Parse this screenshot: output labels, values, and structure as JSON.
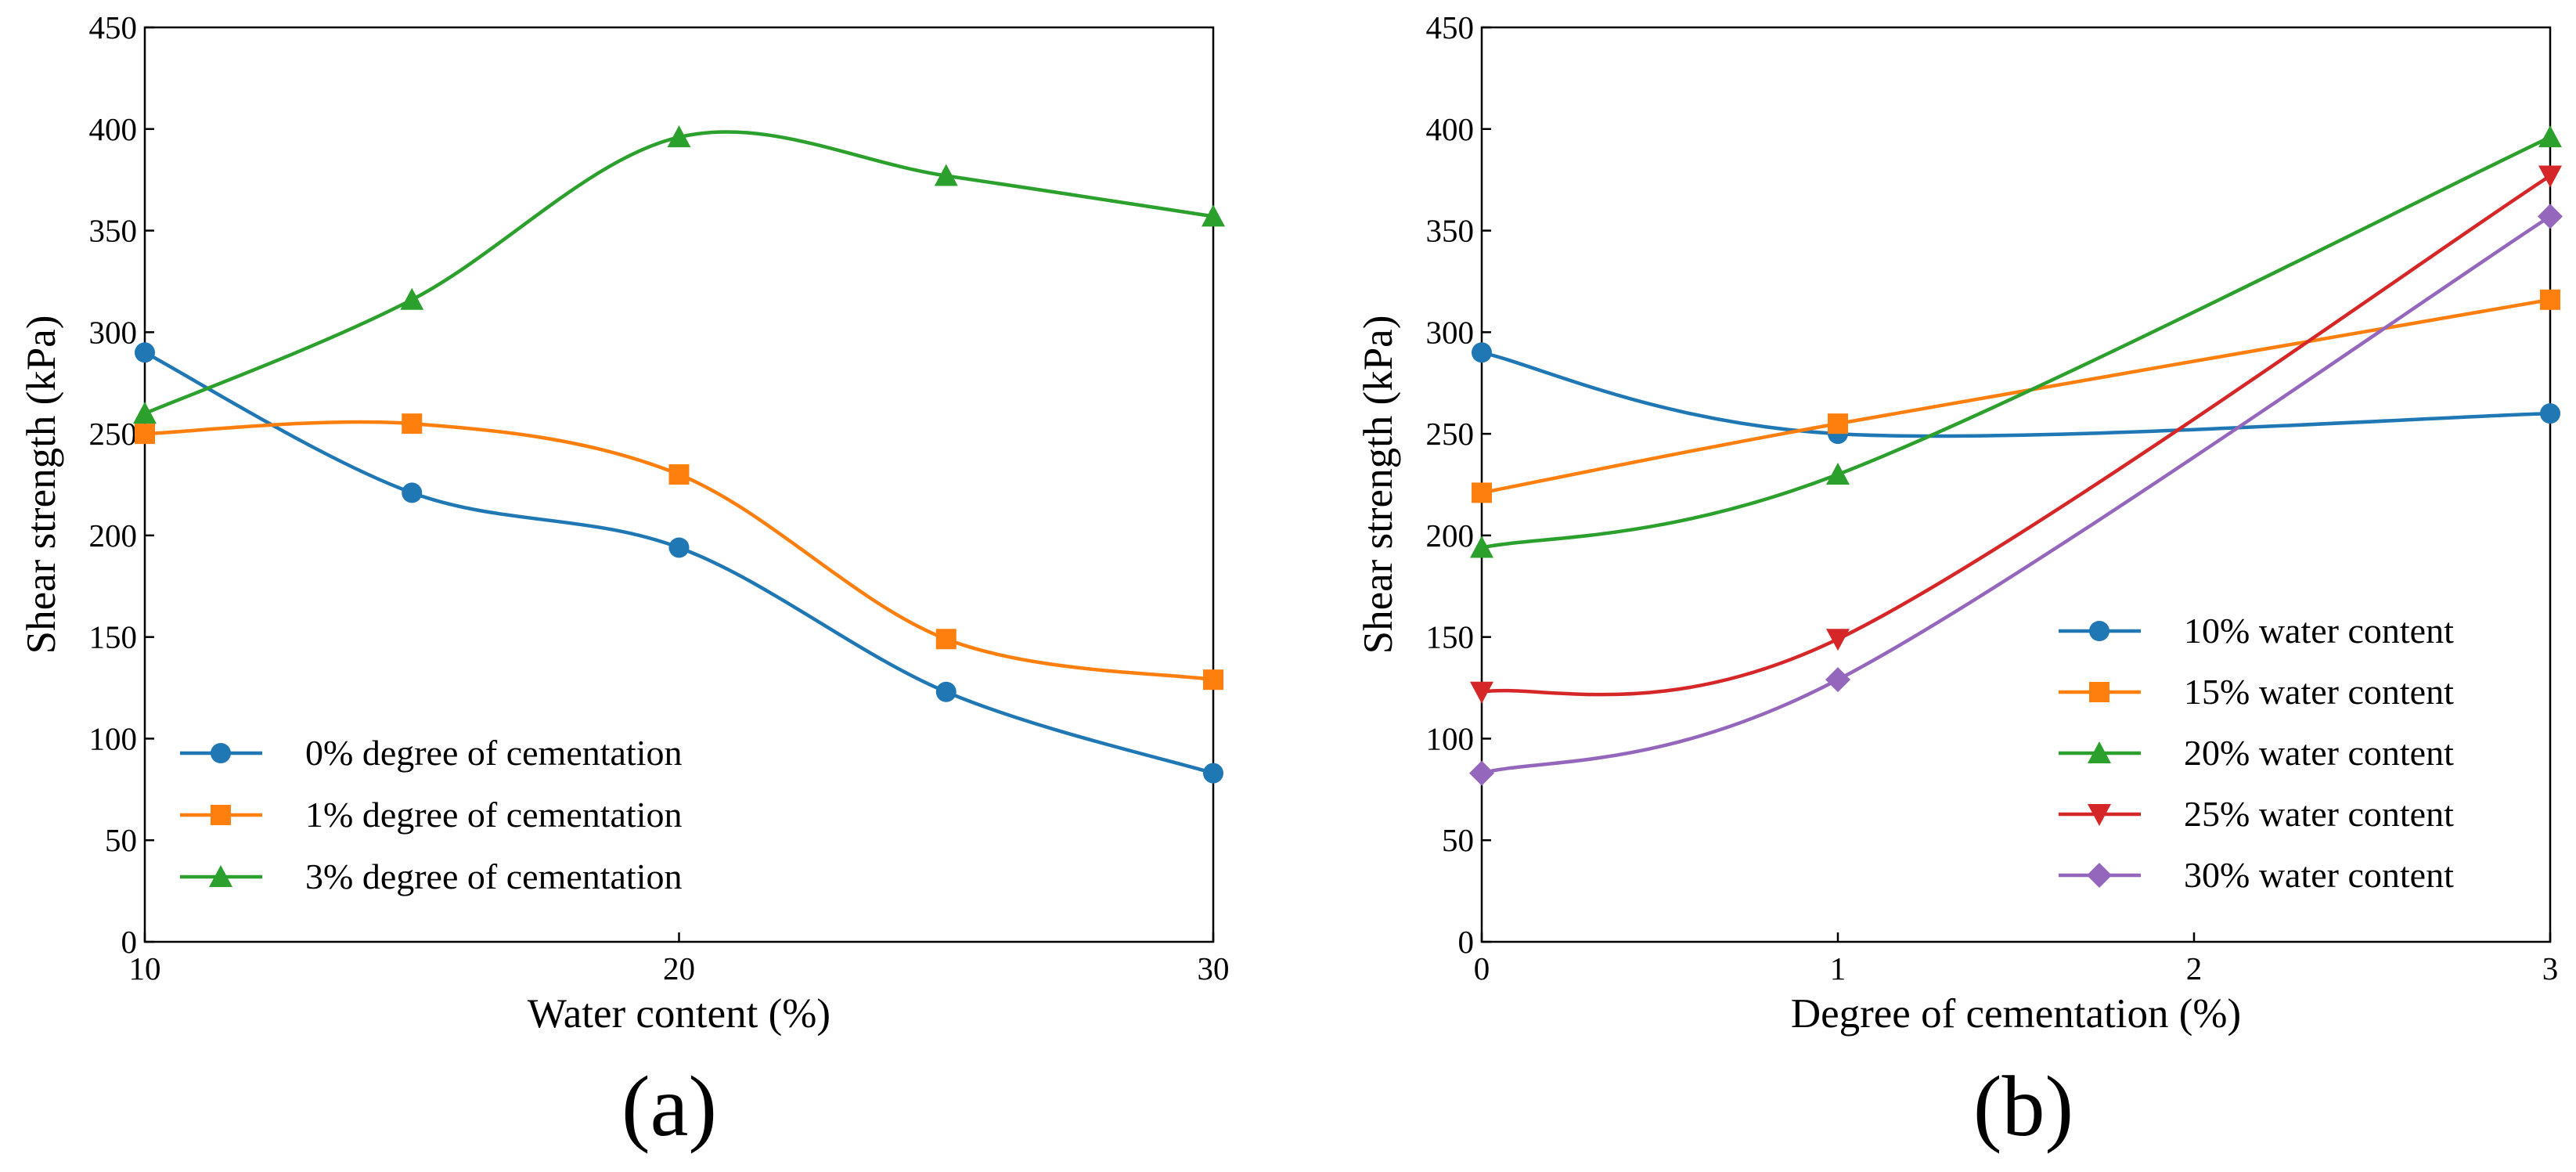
{
  "chart_data": [
    {
      "type": "line",
      "panel_label": "(a)",
      "xlabel": "Water content (%)",
      "ylabel": "Shear strength (kPa)",
      "xlim": [
        10,
        30
      ],
      "ylim": [
        0,
        450
      ],
      "xticks": [
        10,
        20,
        30
      ],
      "yticks": [
        0,
        50,
        100,
        150,
        200,
        250,
        300,
        350,
        400,
        450
      ],
      "grid": false,
      "legend_position": "lower-left",
      "series": [
        {
          "name": "0% degree of cementation",
          "color": "#1f77b4",
          "marker": "circle",
          "x": [
            10,
            15,
            20,
            25,
            30
          ],
          "y": [
            290,
            221,
            194,
            123,
            83
          ]
        },
        {
          "name": "1% degree of cementation",
          "color": "#ff7f0e",
          "marker": "square",
          "x": [
            10,
            15,
            20,
            25,
            30
          ],
          "y": [
            250,
            255,
            230,
            149,
            129
          ]
        },
        {
          "name": "3% degree of cementation",
          "color": "#2ca02c",
          "marker": "triangle-up",
          "x": [
            10,
            15,
            20,
            25,
            30
          ],
          "y": [
            260,
            316,
            396,
            377,
            357
          ]
        }
      ]
    },
    {
      "type": "line",
      "panel_label": "(b)",
      "xlabel": "Degree of cementation (%)",
      "ylabel": "Shear strength (kPa)",
      "xlim": [
        0,
        3
      ],
      "ylim": [
        0,
        450
      ],
      "xticks": [
        0,
        1,
        2,
        3
      ],
      "yticks": [
        0,
        50,
        100,
        150,
        200,
        250,
        300,
        350,
        400,
        450
      ],
      "grid": false,
      "legend_position": "lower-right",
      "series": [
        {
          "name": "10% water content",
          "color": "#1f77b4",
          "marker": "circle",
          "x": [
            0,
            1,
            3
          ],
          "y": [
            290,
            250,
            260
          ]
        },
        {
          "name": "15% water content",
          "color": "#ff7f0e",
          "marker": "square",
          "x": [
            0,
            1,
            3
          ],
          "y": [
            221,
            255,
            316
          ]
        },
        {
          "name": "20% water content",
          "color": "#2ca02c",
          "marker": "triangle-up",
          "x": [
            0,
            1,
            3
          ],
          "y": [
            194,
            230,
            396
          ]
        },
        {
          "name": "25% water content",
          "color": "#d62728",
          "marker": "triangle-down",
          "x": [
            0,
            1,
            3
          ],
          "y": [
            123,
            149,
            377
          ]
        },
        {
          "name": "30% water content",
          "color": "#9467bd",
          "marker": "diamond",
          "x": [
            0,
            1,
            3
          ],
          "y": [
            83,
            129,
            357
          ]
        }
      ]
    }
  ]
}
